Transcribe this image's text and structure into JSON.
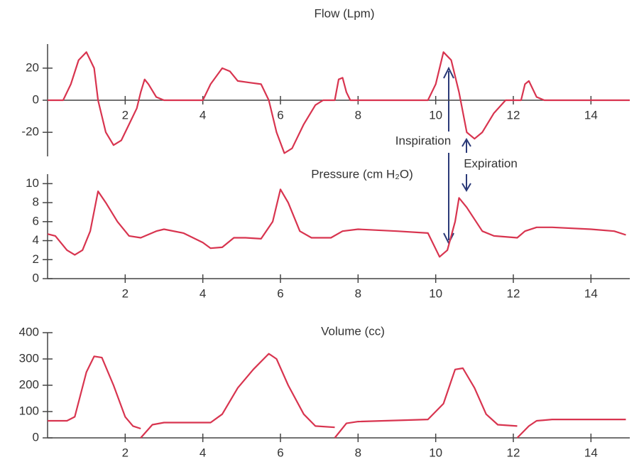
{
  "chart_data": [
    {
      "type": "line",
      "title": "Flow (Lpm)",
      "color": "#d8344f",
      "x": [
        0,
        0.4,
        0.6,
        0.8,
        1.0,
        1.2,
        1.3,
        1.5,
        1.7,
        1.9,
        2.1,
        2.3,
        2.4,
        2.5,
        2.6,
        2.8,
        3,
        4,
        4.2,
        4.5,
        4.7,
        4.9,
        5.2,
        5.5,
        5.7,
        5.9,
        6.1,
        6.3,
        6.6,
        6.9,
        7.1,
        7.4,
        7.5,
        7.6,
        7.7,
        7.8,
        9.8,
        10.0,
        10.2,
        10.4,
        10.6,
        10.8,
        11.0,
        11.2,
        11.5,
        11.8,
        12.2,
        12.3,
        12.4,
        12.6,
        12.8,
        15
      ],
      "values": [
        0,
        0,
        10,
        25,
        30,
        20,
        0,
        -20,
        -28,
        -25,
        -15,
        -5,
        5,
        13,
        10,
        2,
        0,
        0,
        10,
        20,
        18,
        12,
        11,
        10,
        0,
        -20,
        -33,
        -30,
        -15,
        -3,
        0,
        0,
        13,
        14,
        5,
        0,
        0,
        10,
        30,
        25,
        5,
        -20,
        -24,
        -20,
        -8,
        0,
        0,
        10,
        12,
        2,
        0,
        0
      ],
      "xlim": [
        0,
        15
      ],
      "xticks": [
        2,
        4,
        6,
        8,
        10,
        12,
        14
      ],
      "ylim": [
        -35,
        35
      ],
      "yticks": [
        -20,
        0,
        20
      ],
      "annotations": [
        "Inspiration",
        "Expiration"
      ]
    },
    {
      "type": "line",
      "title": "Pressure (cm H₂O)",
      "color": "#d8344f",
      "x": [
        0,
        0.2,
        0.5,
        0.7,
        0.9,
        1.1,
        1.3,
        1.5,
        1.8,
        2.1,
        2.4,
        2.8,
        3.0,
        3.5,
        4.0,
        4.2,
        4.5,
        4.8,
        5.1,
        5.5,
        5.8,
        6.0,
        6.2,
        6.5,
        6.8,
        7.3,
        7.6,
        8,
        9,
        9.8,
        10.1,
        10.3,
        10.5,
        10.6,
        10.8,
        11.2,
        11.5,
        12.1,
        12.3,
        12.6,
        13,
        14,
        14.6,
        14.9
      ],
      "values": [
        4.7,
        4.5,
        3,
        2.5,
        3,
        5,
        9.2,
        8,
        6,
        4.5,
        4.3,
        5,
        5.2,
        4.8,
        3.8,
        3.2,
        3.3,
        4.3,
        4.3,
        4.2,
        6,
        9.4,
        8,
        5,
        4.3,
        4.3,
        5,
        5.2,
        5,
        4.8,
        2.3,
        3,
        6,
        8.5,
        7.5,
        5,
        4.5,
        4.3,
        5,
        5.4,
        5.4,
        5.2,
        5,
        4.6
      ],
      "xlim": [
        0,
        15
      ],
      "xticks": [
        2,
        4,
        6,
        8,
        10,
        12,
        14
      ],
      "ylim": [
        0,
        11
      ],
      "yticks": [
        0,
        2,
        4,
        6,
        8,
        10
      ]
    },
    {
      "type": "line",
      "title": "Volume (cc)",
      "color": "#d8344f",
      "x": [
        0,
        0.5,
        0.7,
        1.0,
        1.2,
        1.4,
        1.7,
        2.0,
        2.2,
        2.4,
        null,
        2.4,
        2.7,
        3,
        4.2,
        4.5,
        4.9,
        5.3,
        5.7,
        5.9,
        6.2,
        6.6,
        6.9,
        7.4,
        null,
        7.4,
        7.7,
        8,
        9.8,
        10.2,
        10.5,
        10.7,
        11.0,
        11.3,
        11.6,
        12.1,
        null,
        12.1,
        12.4,
        12.6,
        13,
        14,
        14.9
      ],
      "values": [
        65,
        65,
        80,
        250,
        310,
        305,
        200,
        80,
        45,
        35,
        null,
        0,
        50,
        58,
        58,
        90,
        190,
        260,
        320,
        300,
        200,
        90,
        45,
        40,
        null,
        0,
        55,
        62,
        70,
        130,
        260,
        265,
        190,
        90,
        50,
        45,
        null,
        0,
        45,
        65,
        70,
        70,
        70
      ],
      "xlim": [
        0,
        15
      ],
      "xticks": [
        2,
        4,
        6,
        8,
        10,
        12,
        14
      ],
      "ylim": [
        0,
        400
      ],
      "yticks": [
        0,
        100,
        200,
        300,
        400
      ]
    }
  ]
}
